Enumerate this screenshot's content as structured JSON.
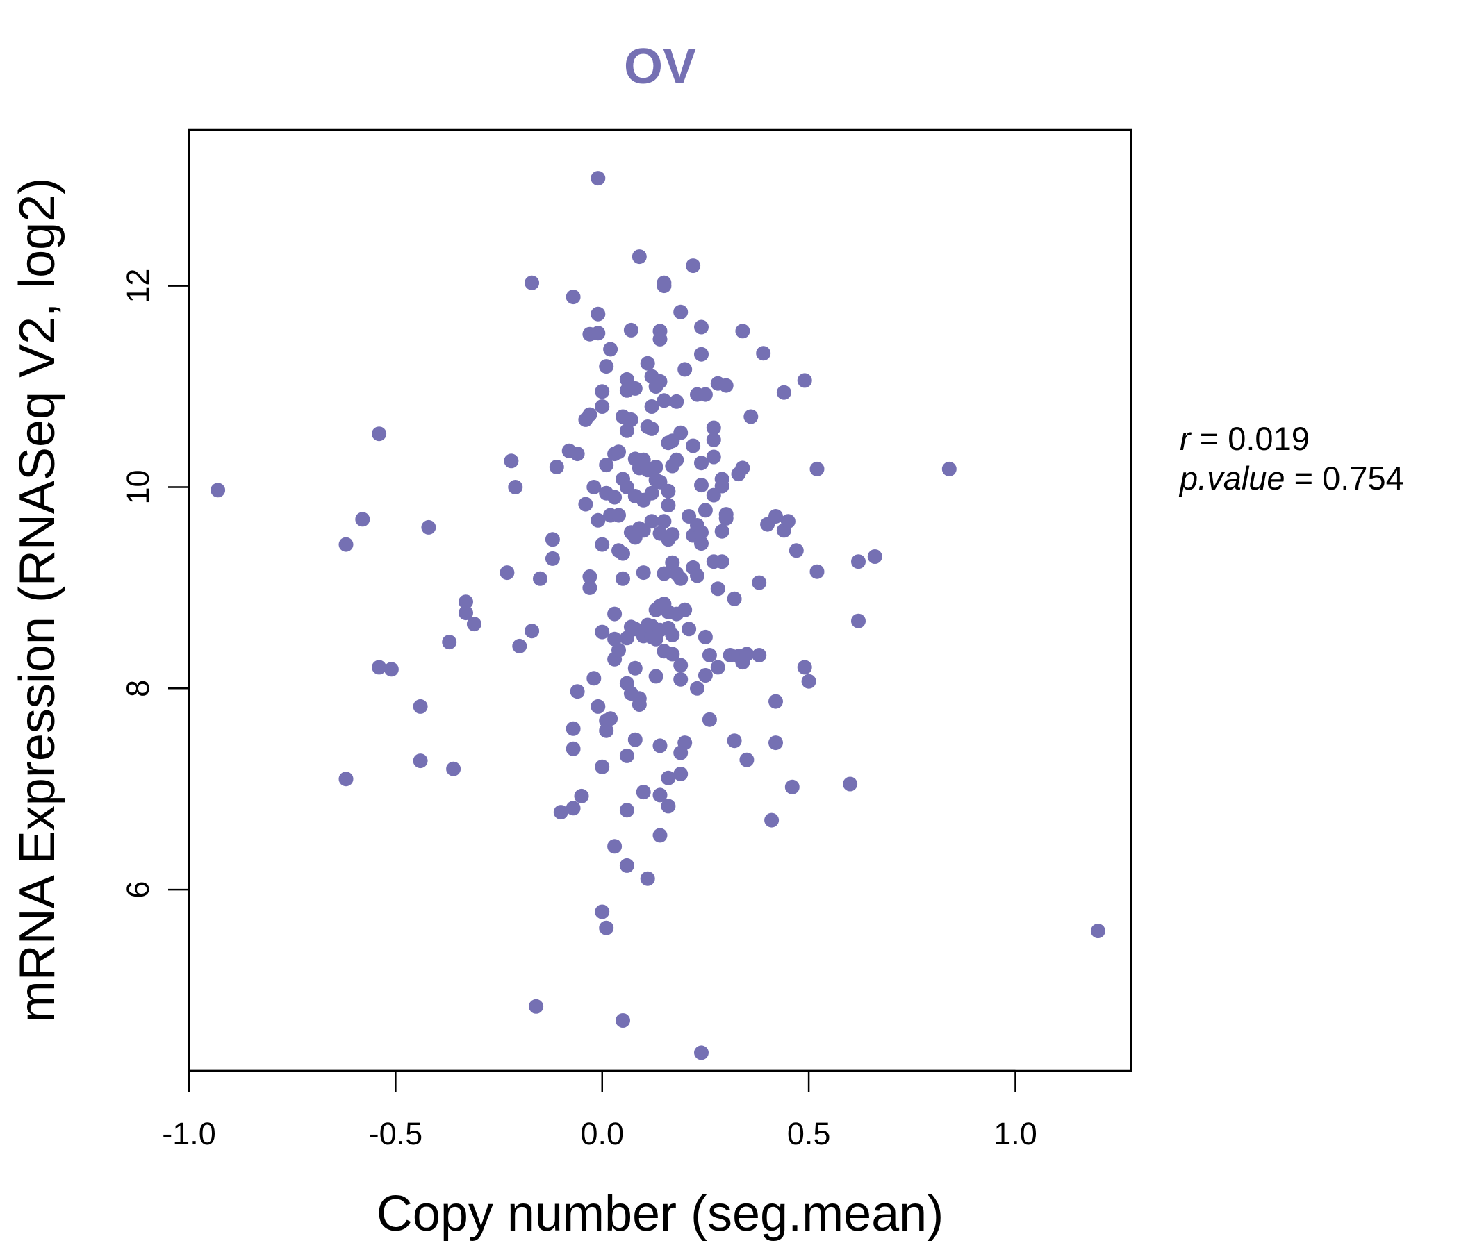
{
  "chart_data": {
    "type": "scatter",
    "title": "OV",
    "xlabel": "Copy number (seg.mean)",
    "ylabel": "mRNA Expression (RNASeq V2, log2)",
    "xlim": [
      -1.0,
      1.28
    ],
    "ylim": [
      4.2,
      13.55
    ],
    "x_ticks": [
      -1.0,
      -0.5,
      0.0,
      0.5,
      1.0
    ],
    "x_tick_labels": [
      "-1.0",
      "-0.5",
      "0.0",
      "0.5",
      "1.0"
    ],
    "y_ticks": [
      6,
      8,
      10,
      12
    ],
    "y_tick_labels": [
      "6",
      "8",
      "10",
      "12"
    ],
    "grid": false,
    "point_color": "#7570b3",
    "stats": {
      "r": "0.019",
      "p_value": "0.754"
    },
    "points": [
      [
        -0.93,
        9.97
      ],
      [
        -0.62,
        9.43
      ],
      [
        -0.58,
        9.68
      ],
      [
        -0.54,
        10.53
      ],
      [
        -0.54,
        8.21
      ],
      [
        -0.51,
        8.19
      ],
      [
        -0.62,
        7.1
      ],
      [
        -0.44,
        7.82
      ],
      [
        -0.44,
        7.28
      ],
      [
        -0.42,
        9.6
      ],
      [
        -0.37,
        8.46
      ],
      [
        -0.36,
        7.2
      ],
      [
        -0.33,
        8.75
      ],
      [
        -0.33,
        8.86
      ],
      [
        -0.31,
        8.64
      ],
      [
        -0.23,
        9.15
      ],
      [
        -0.22,
        10.26
      ],
      [
        -0.21,
        10.0
      ],
      [
        -0.2,
        8.42
      ],
      [
        -0.17,
        12.03
      ],
      [
        -0.17,
        8.57
      ],
      [
        -0.16,
        4.84
      ],
      [
        -0.15,
        9.09
      ],
      [
        -0.12,
        9.48
      ],
      [
        -0.12,
        9.29
      ],
      [
        -0.11,
        10.2
      ],
      [
        -0.1,
        6.77
      ],
      [
        -0.08,
        10.36
      ],
      [
        -0.07,
        11.89
      ],
      [
        -0.07,
        7.4
      ],
      [
        -0.07,
        7.6
      ],
      [
        -0.07,
        6.81
      ],
      [
        -0.06,
        10.33
      ],
      [
        -0.06,
        7.97
      ],
      [
        -0.05,
        6.93
      ],
      [
        -0.04,
        10.67
      ],
      [
        -0.04,
        9.83
      ],
      [
        -0.03,
        11.52
      ],
      [
        -0.03,
        10.72
      ],
      [
        -0.03,
        9.0
      ],
      [
        -0.03,
        9.11
      ],
      [
        -0.02,
        10.0
      ],
      [
        -0.02,
        8.1
      ],
      [
        -0.01,
        13.07
      ],
      [
        -0.01,
        11.72
      ],
      [
        -0.01,
        11.53
      ],
      [
        -0.01,
        9.67
      ],
      [
        -0.01,
        7.82
      ],
      [
        0.0,
        10.95
      ],
      [
        0.0,
        10.8
      ],
      [
        0.0,
        9.43
      ],
      [
        0.0,
        8.56
      ],
      [
        0.0,
        7.22
      ],
      [
        0.0,
        5.78
      ],
      [
        0.01,
        11.2
      ],
      [
        0.01,
        10.22
      ],
      [
        0.01,
        9.94
      ],
      [
        0.01,
        7.68
      ],
      [
        0.01,
        7.58
      ],
      [
        0.01,
        5.62
      ],
      [
        0.02,
        11.37
      ],
      [
        0.02,
        9.72
      ],
      [
        0.02,
        7.7
      ],
      [
        0.03,
        10.33
      ],
      [
        0.03,
        9.9
      ],
      [
        0.03,
        8.74
      ],
      [
        0.03,
        8.49
      ],
      [
        0.03,
        8.29
      ],
      [
        0.03,
        6.43
      ],
      [
        0.04,
        10.35
      ],
      [
        0.04,
        9.72
      ],
      [
        0.04,
        9.37
      ],
      [
        0.04,
        8.38
      ],
      [
        0.05,
        10.7
      ],
      [
        0.05,
        10.08
      ],
      [
        0.05,
        9.34
      ],
      [
        0.05,
        9.09
      ],
      [
        0.05,
        4.7
      ],
      [
        0.06,
        11.07
      ],
      [
        0.06,
        10.96
      ],
      [
        0.06,
        10.56
      ],
      [
        0.06,
        10.0
      ],
      [
        0.06,
        8.5
      ],
      [
        0.06,
        8.05
      ],
      [
        0.06,
        7.33
      ],
      [
        0.06,
        6.79
      ],
      [
        0.06,
        6.24
      ],
      [
        0.07,
        11.56
      ],
      [
        0.07,
        10.67
      ],
      [
        0.07,
        9.55
      ],
      [
        0.07,
        8.61
      ],
      [
        0.07,
        7.95
      ],
      [
        0.08,
        10.98
      ],
      [
        0.08,
        10.28
      ],
      [
        0.08,
        9.91
      ],
      [
        0.08,
        9.5
      ],
      [
        0.08,
        8.59
      ],
      [
        0.08,
        8.2
      ],
      [
        0.08,
        7.49
      ],
      [
        0.09,
        12.29
      ],
      [
        0.09,
        10.19
      ],
      [
        0.09,
        9.59
      ],
      [
        0.09,
        7.9
      ],
      [
        0.09,
        7.84
      ],
      [
        0.1,
        10.27
      ],
      [
        0.1,
        9.87
      ],
      [
        0.1,
        9.57
      ],
      [
        0.1,
        9.15
      ],
      [
        0.1,
        8.52
      ],
      [
        0.1,
        6.97
      ],
      [
        0.11,
        11.23
      ],
      [
        0.11,
        10.6
      ],
      [
        0.11,
        10.17
      ],
      [
        0.11,
        8.63
      ],
      [
        0.11,
        6.11
      ],
      [
        0.12,
        11.1
      ],
      [
        0.12,
        10.8
      ],
      [
        0.12,
        10.58
      ],
      [
        0.12,
        9.94
      ],
      [
        0.12,
        9.66
      ],
      [
        0.12,
        8.62
      ],
      [
        0.12,
        8.51
      ],
      [
        0.13,
        11.0
      ],
      [
        0.13,
        10.2
      ],
      [
        0.13,
        10.07
      ],
      [
        0.13,
        8.78
      ],
      [
        0.13,
        8.49
      ],
      [
        0.13,
        8.12
      ],
      [
        0.14,
        11.55
      ],
      [
        0.14,
        11.47
      ],
      [
        0.14,
        11.05
      ],
      [
        0.14,
        10.05
      ],
      [
        0.14,
        9.54
      ],
      [
        0.14,
        8.82
      ],
      [
        0.14,
        8.58
      ],
      [
        0.14,
        7.43
      ],
      [
        0.14,
        6.94
      ],
      [
        0.14,
        6.54
      ],
      [
        0.15,
        12.03
      ],
      [
        0.15,
        12.0
      ],
      [
        0.15,
        10.86
      ],
      [
        0.15,
        9.66
      ],
      [
        0.15,
        9.14
      ],
      [
        0.15,
        8.84
      ],
      [
        0.15,
        8.37
      ],
      [
        0.16,
        10.44
      ],
      [
        0.16,
        9.96
      ],
      [
        0.16,
        9.82
      ],
      [
        0.16,
        9.48
      ],
      [
        0.16,
        8.76
      ],
      [
        0.16,
        8.6
      ],
      [
        0.16,
        7.11
      ],
      [
        0.16,
        6.83
      ],
      [
        0.17,
        10.46
      ],
      [
        0.17,
        10.21
      ],
      [
        0.17,
        9.53
      ],
      [
        0.17,
        9.25
      ],
      [
        0.17,
        8.53
      ],
      [
        0.17,
        8.34
      ],
      [
        0.18,
        10.85
      ],
      [
        0.18,
        10.27
      ],
      [
        0.18,
        9.14
      ],
      [
        0.18,
        8.74
      ],
      [
        0.19,
        11.74
      ],
      [
        0.19,
        10.54
      ],
      [
        0.19,
        9.09
      ],
      [
        0.19,
        8.23
      ],
      [
        0.19,
        8.09
      ],
      [
        0.19,
        7.36
      ],
      [
        0.19,
        7.15
      ],
      [
        0.2,
        11.17
      ],
      [
        0.2,
        8.78
      ],
      [
        0.2,
        7.46
      ],
      [
        0.21,
        9.71
      ],
      [
        0.21,
        8.59
      ],
      [
        0.22,
        12.2
      ],
      [
        0.22,
        10.41
      ],
      [
        0.22,
        9.52
      ],
      [
        0.22,
        9.2
      ],
      [
        0.23,
        10.92
      ],
      [
        0.23,
        9.62
      ],
      [
        0.23,
        9.12
      ],
      [
        0.23,
        8.0
      ],
      [
        0.24,
        11.59
      ],
      [
        0.24,
        11.32
      ],
      [
        0.24,
        10.24
      ],
      [
        0.24,
        10.02
      ],
      [
        0.24,
        9.55
      ],
      [
        0.24,
        9.44
      ],
      [
        0.24,
        4.38
      ],
      [
        0.25,
        10.92
      ],
      [
        0.25,
        9.77
      ],
      [
        0.25,
        8.51
      ],
      [
        0.25,
        8.13
      ],
      [
        0.26,
        8.33
      ],
      [
        0.26,
        7.69
      ],
      [
        0.27,
        10.59
      ],
      [
        0.27,
        10.47
      ],
      [
        0.27,
        10.3
      ],
      [
        0.27,
        9.92
      ],
      [
        0.27,
        9.26
      ],
      [
        0.28,
        11.03
      ],
      [
        0.28,
        8.99
      ],
      [
        0.28,
        8.21
      ],
      [
        0.29,
        10.08
      ],
      [
        0.29,
        10.01
      ],
      [
        0.29,
        9.56
      ],
      [
        0.29,
        9.26
      ],
      [
        0.3,
        11.01
      ],
      [
        0.3,
        9.73
      ],
      [
        0.3,
        9.69
      ],
      [
        0.31,
        8.33
      ],
      [
        0.32,
        8.89
      ],
      [
        0.32,
        7.48
      ],
      [
        0.33,
        10.13
      ],
      [
        0.33,
        8.32
      ],
      [
        0.34,
        11.55
      ],
      [
        0.34,
        10.19
      ],
      [
        0.34,
        8.26
      ],
      [
        0.35,
        8.34
      ],
      [
        0.35,
        7.29
      ],
      [
        0.36,
        10.7
      ],
      [
        0.38,
        9.05
      ],
      [
        0.38,
        8.33
      ],
      [
        0.39,
        11.33
      ],
      [
        0.4,
        9.63
      ],
      [
        0.41,
        6.69
      ],
      [
        0.42,
        9.71
      ],
      [
        0.42,
        7.87
      ],
      [
        0.42,
        7.46
      ],
      [
        0.44,
        10.94
      ],
      [
        0.44,
        9.57
      ],
      [
        0.45,
        9.66
      ],
      [
        0.46,
        7.02
      ],
      [
        0.47,
        9.37
      ],
      [
        0.49,
        11.06
      ],
      [
        0.49,
        8.21
      ],
      [
        0.5,
        8.07
      ],
      [
        0.52,
        10.18
      ],
      [
        0.52,
        9.16
      ],
      [
        0.6,
        7.05
      ],
      [
        0.62,
        9.26
      ],
      [
        0.62,
        8.67
      ],
      [
        0.66,
        9.31
      ],
      [
        0.84,
        10.18
      ],
      [
        1.2,
        5.59
      ]
    ]
  }
}
